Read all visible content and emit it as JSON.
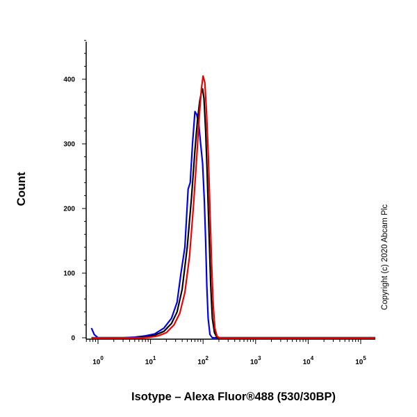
{
  "chart_data": {
    "type": "line",
    "title": "",
    "xlabel": "Isotype – Alexa Fluor®488 (530/30BP)",
    "ylabel": "Count",
    "xscale": "log",
    "ylim": [
      0,
      460
    ],
    "y_ticks": [
      0,
      100,
      200,
      300,
      400
    ],
    "x_ticks": [
      {
        "value": 1,
        "base": "10",
        "exp": "0"
      },
      {
        "value": 10,
        "base": "10",
        "exp": "1"
      },
      {
        "value": 100,
        "base": "10",
        "exp": "2"
      },
      {
        "value": 1000,
        "base": "10",
        "exp": "3"
      },
      {
        "value": 10000,
        "base": "10",
        "exp": "4"
      },
      {
        "value": 100000,
        "base": "10",
        "exp": "5"
      }
    ],
    "grid": false,
    "series": [
      {
        "color": "#0000ee",
        "points": [
          [
            0.75,
            15
          ],
          [
            0.85,
            5
          ],
          [
            1.0,
            0
          ],
          [
            3,
            0
          ],
          [
            5,
            1
          ],
          [
            8,
            3
          ],
          [
            12,
            6
          ],
          [
            18,
            15
          ],
          [
            25,
            30
          ],
          [
            32,
            55
          ],
          [
            38,
            100
          ],
          [
            45,
            140
          ],
          [
            52,
            230
          ],
          [
            57,
            240
          ],
          [
            63,
            300
          ],
          [
            70,
            350
          ],
          [
            76,
            345
          ],
          [
            83,
            330
          ],
          [
            90,
            300
          ],
          [
            98,
            270
          ],
          [
            106,
            210
          ],
          [
            112,
            150
          ],
          [
            118,
            80
          ],
          [
            125,
            30
          ],
          [
            135,
            5
          ],
          [
            150,
            0
          ],
          [
            200000,
            0
          ]
        ]
      },
      {
        "color": "#000000",
        "points": [
          [
            0.75,
            0
          ],
          [
            5,
            0
          ],
          [
            8,
            1
          ],
          [
            12,
            4
          ],
          [
            18,
            10
          ],
          [
            25,
            22
          ],
          [
            32,
            40
          ],
          [
            40,
            75
          ],
          [
            50,
            140
          ],
          [
            60,
            215
          ],
          [
            70,
            290
          ],
          [
            78,
            335
          ],
          [
            86,
            365
          ],
          [
            93,
            380
          ],
          [
            98,
            385
          ],
          [
            104,
            370
          ],
          [
            112,
            320
          ],
          [
            120,
            250
          ],
          [
            130,
            160
          ],
          [
            140,
            80
          ],
          [
            150,
            30
          ],
          [
            165,
            8
          ],
          [
            185,
            0
          ],
          [
            200000,
            0
          ]
        ]
      },
      {
        "color": "#ee0000",
        "points": [
          [
            0.75,
            0
          ],
          [
            7,
            0
          ],
          [
            10,
            1
          ],
          [
            14,
            3
          ],
          [
            20,
            8
          ],
          [
            28,
            20
          ],
          [
            36,
            38
          ],
          [
            45,
            70
          ],
          [
            55,
            125
          ],
          [
            65,
            200
          ],
          [
            75,
            275
          ],
          [
            85,
            345
          ],
          [
            93,
            385
          ],
          [
            100,
            405
          ],
          [
            108,
            395
          ],
          [
            116,
            350
          ],
          [
            126,
            280
          ],
          [
            136,
            190
          ],
          [
            146,
            110
          ],
          [
            156,
            50
          ],
          [
            168,
            15
          ],
          [
            185,
            2
          ],
          [
            205,
            0
          ],
          [
            200000,
            0
          ]
        ]
      }
    ],
    "annotation": "Copyright (c) 2020 Abcam Plc"
  }
}
